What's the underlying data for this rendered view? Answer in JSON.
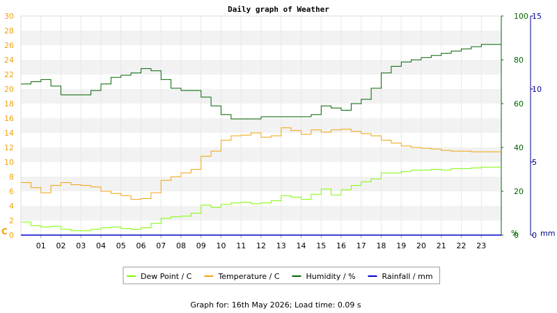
{
  "chart_data": {
    "type": "line",
    "title": "Daily graph of Weather",
    "footer": "Graph for: 16th May 2026; Load time: 0.09 s",
    "x_ticks": [
      "01",
      "02",
      "03",
      "04",
      "05",
      "06",
      "07",
      "08",
      "09",
      "10",
      "11",
      "12",
      "13",
      "14",
      "15",
      "16",
      "17",
      "18",
      "19",
      "20",
      "21",
      "22",
      "23"
    ],
    "xlim": [
      0,
      24
    ],
    "axes": {
      "left": {
        "label": "C",
        "ylim": [
          0,
          30
        ],
        "ticks": [
          "0",
          "2",
          "4",
          "6",
          "8",
          "10",
          "12",
          "14",
          "16",
          "18",
          "20",
          "22",
          "24",
          "26",
          "28",
          "30"
        ],
        "color": "#f0a30a"
      },
      "humidity": {
        "label": "%",
        "ylim": [
          0,
          100
        ],
        "ticks": [
          "0",
          "20",
          "40",
          "60",
          "80",
          "100"
        ],
        "color": "#006400"
      },
      "rainfall": {
        "label": "mm",
        "ylim": [
          0,
          15
        ],
        "ticks": [
          "0",
          "5",
          "10",
          "15"
        ],
        "color": "#00008b"
      }
    },
    "grid": "horizontal bands",
    "legend_position": "bottom",
    "series": [
      {
        "name": "Dew Point / C",
        "axis": "left",
        "color": "#7cfc00",
        "x": [
          0,
          0.5,
          1,
          1.5,
          2,
          2.5,
          3,
          3.5,
          4,
          4.5,
          5,
          5.5,
          6,
          6.5,
          7,
          7.5,
          8,
          8.5,
          9,
          9.5,
          10,
          10.5,
          11,
          11.5,
          12,
          12.5,
          13,
          13.5,
          14,
          14.5,
          15,
          15.5,
          16,
          16.5,
          17,
          17.5,
          18,
          18.5,
          19,
          19.5,
          20,
          20.5,
          21,
          21.5,
          22,
          22.5,
          23,
          23.5,
          24
        ],
        "y": [
          1.8,
          1.3,
          1.1,
          1.2,
          0.8,
          0.6,
          0.6,
          0.8,
          1.0,
          1.1,
          0.9,
          0.8,
          1.0,
          1.6,
          2.3,
          2.5,
          2.6,
          3.0,
          4.1,
          3.8,
          4.2,
          4.4,
          4.5,
          4.3,
          4.4,
          4.7,
          5.4,
          5.2,
          4.9,
          5.6,
          6.3,
          5.5,
          6.2,
          6.8,
          7.3,
          7.7,
          8.5,
          8.5,
          8.7,
          8.9,
          8.9,
          9.0,
          8.9,
          9.1,
          9.1,
          9.2,
          9.3,
          9.3,
          9.3
        ]
      },
      {
        "name": "Temperature / C",
        "axis": "left",
        "color": "#f0a30a",
        "x": [
          0,
          0.5,
          1,
          1.5,
          2,
          2.5,
          3,
          3.5,
          4,
          4.5,
          5,
          5.5,
          6,
          6.5,
          7,
          7.5,
          8,
          8.5,
          9,
          9.5,
          10,
          10.5,
          11,
          11.5,
          12,
          12.5,
          13,
          13.5,
          14,
          14.5,
          15,
          15.5,
          16,
          16.5,
          17,
          17.5,
          18,
          18.5,
          19,
          19.5,
          20,
          20.5,
          21,
          21.5,
          22,
          22.5,
          23,
          23.5,
          24
        ],
        "y": [
          7.2,
          6.5,
          5.8,
          6.8,
          7.2,
          6.9,
          6.8,
          6.6,
          6.0,
          5.7,
          5.4,
          4.9,
          5.0,
          5.8,
          7.5,
          8.0,
          8.5,
          9.0,
          10.8,
          11.5,
          13.0,
          13.6,
          13.7,
          14.0,
          13.4,
          13.6,
          14.7,
          14.3,
          13.8,
          14.4,
          14.1,
          14.4,
          14.5,
          14.2,
          13.9,
          13.6,
          13.0,
          12.6,
          12.2,
          12.0,
          11.9,
          11.8,
          11.6,
          11.5,
          11.5,
          11.4,
          11.4,
          11.4,
          11.4
        ]
      },
      {
        "name": "Humidity / %",
        "axis": "humidity",
        "color": "#006400",
        "x": [
          0,
          0.5,
          1,
          1.5,
          2,
          2.5,
          3,
          3.5,
          4,
          4.5,
          5,
          5.5,
          6,
          6.5,
          7,
          7.5,
          8,
          8.5,
          9,
          9.5,
          10,
          10.5,
          11,
          11.5,
          12,
          12.5,
          13,
          13.5,
          14,
          14.5,
          15,
          15.5,
          16,
          16.5,
          17,
          17.5,
          18,
          18.5,
          19,
          19.5,
          20,
          20.5,
          21,
          21.5,
          22,
          22.5,
          23,
          23.5,
          24
        ],
        "y": [
          69,
          70,
          71,
          68,
          64,
          64,
          64,
          66,
          69,
          72,
          73,
          74,
          76,
          75,
          71,
          67,
          66,
          66,
          63,
          59,
          55,
          53,
          53,
          53,
          54,
          54,
          54,
          54,
          54,
          55,
          59,
          58,
          57,
          60,
          62,
          67,
          74,
          77,
          79,
          80,
          81,
          82,
          83,
          84,
          85,
          86,
          87,
          87,
          87
        ]
      },
      {
        "name": "Rainfall / mm",
        "axis": "rainfall",
        "color": "#0000cd",
        "x": [
          0,
          24
        ],
        "y": [
          0,
          0
        ]
      }
    ]
  }
}
